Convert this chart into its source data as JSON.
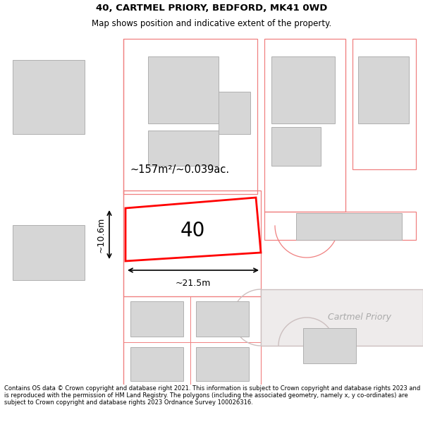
{
  "title_line1": "40, CARTMEL PRIORY, BEDFORD, MK41 0WD",
  "title_line2": "Map shows position and indicative extent of the property.",
  "footer_text": "Contains OS data © Crown copyright and database right 2021. This information is subject to Crown copyright and database rights 2023 and is reproduced with the permission of HM Land Registry. The polygons (including the associated geometry, namely x, y co-ordinates) are subject to Crown copyright and database rights 2023 Ordnance Survey 100026316.",
  "area_label": "~157m²/~0.039ac.",
  "property_number": "40",
  "width_label": "~21.5m",
  "height_label": "~10.6m",
  "road_label": "Cartmel Priory",
  "bg_color": "#ffffff",
  "map_bg": "#f7f3f3",
  "building_fill": "#d6d6d6",
  "building_edge": "#b0b0b0",
  "plot_line_color": "#ff0000",
  "boundary_color": "#f08080",
  "title_fontsize": 9.5,
  "subtitle_fontsize": 8.5,
  "footer_fontsize": 6.0
}
